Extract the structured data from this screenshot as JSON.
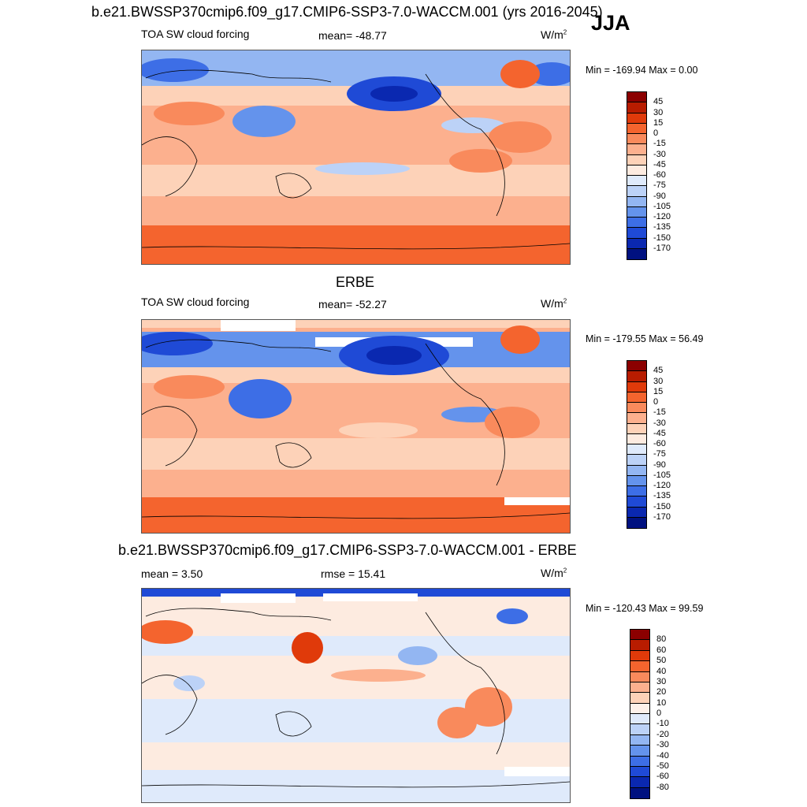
{
  "header": {
    "title": "b.e21.BWSSP370cmip6.f09_g17.CMIP6-SSP3-7.0-WACCM.001 (yrs 2016-2045)",
    "season": "JJA"
  },
  "panels": [
    {
      "variable": "TOA SW cloud forcing",
      "stat_left": "",
      "stat_center": "mean= -48.77",
      "units": "W/m",
      "units_sup": "2",
      "minmax": "Min = -169.94 Max =   0.00",
      "colorbar_labels": [
        "45",
        "30",
        "15",
        "0",
        "-15",
        "-30",
        "-45",
        "-60",
        "-75",
        "-90",
        "-105",
        "-120",
        "-135",
        "-150",
        "-170"
      ]
    },
    {
      "panel_title": "ERBE",
      "variable": "TOA SW cloud forcing",
      "stat_center": "mean= -52.27",
      "units": "W/m",
      "units_sup": "2",
      "minmax": "Min = -179.55 Max =  56.49",
      "colorbar_labels": [
        "45",
        "30",
        "15",
        "0",
        "-15",
        "-30",
        "-45",
        "-60",
        "-75",
        "-90",
        "-105",
        "-120",
        "-135",
        "-150",
        "-170"
      ]
    },
    {
      "panel_title": "b.e21.BWSSP370cmip6.f09_g17.CMIP6-SSP3-7.0-WACCM.001 - ERBE",
      "stat_left": "mean =   3.50",
      "stat_center": "rmse =  15.41",
      "units": "W/m",
      "units_sup": "2",
      "minmax": "Min = -120.43 Max =  99.59",
      "colorbar_labels": [
        "80",
        "60",
        "50",
        "40",
        "30",
        "20",
        "10",
        "0",
        "-10",
        "-20",
        "-30",
        "-40",
        "-50",
        "-60",
        "-80"
      ]
    }
  ],
  "colors": {
    "abs_scale": [
      "#8b0000",
      "#b81c00",
      "#e03a0a",
      "#f4642e",
      "#f98a5c",
      "#fcb08e",
      "#fdd2b8",
      "#fdebe0",
      "#dfeafb",
      "#bcd2f7",
      "#93b6f2",
      "#6493ec",
      "#3d6ee6",
      "#1f4ad6",
      "#0a28b0",
      "#001180"
    ],
    "diff_scale": [
      "#8b0000",
      "#b81c00",
      "#e03a0a",
      "#f4642e",
      "#f98a5c",
      "#fcb08e",
      "#fdd2b8",
      "#fdf1ea",
      "#dfeafb",
      "#bcd2f7",
      "#93b6f2",
      "#6493ec",
      "#3d6ee6",
      "#1f4ad6",
      "#0a28b0",
      "#001180"
    ]
  }
}
